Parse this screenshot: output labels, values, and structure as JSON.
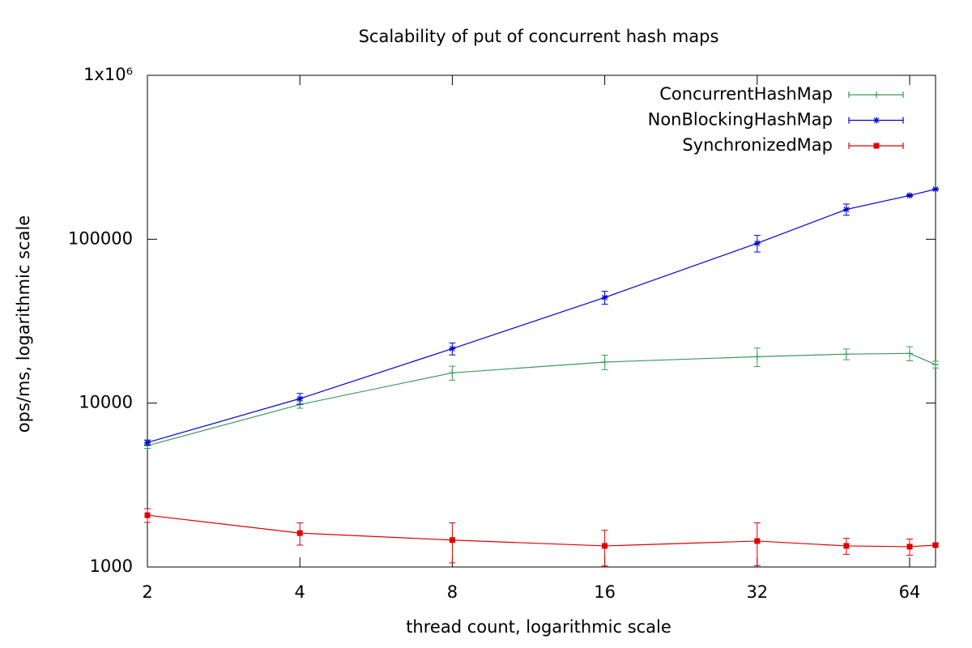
{
  "chart_data": {
    "type": "line",
    "title": "Scalability of put of concurrent hash maps",
    "x_label": "thread count, logarithmic scale",
    "y_label": "ops/ms, logarithmic scale",
    "log_x": true,
    "log_y": true,
    "grid": false,
    "legend_position": "top-right",
    "x": [
      2,
      4,
      8,
      16,
      32,
      48,
      64,
      72
    ],
    "xlim": [
      2,
      72
    ],
    "xticks": [
      2,
      4,
      8,
      16,
      32,
      64
    ],
    "ylim": [
      1000,
      1000000
    ],
    "yticks": [
      1000,
      10000,
      100000,
      {
        "value": 1000000,
        "label": "1x10⁶"
      }
    ],
    "series": [
      {
        "name": "ConcurrentHashMap",
        "color": "#3a9a5a",
        "marker": "plus",
        "values": [
          5500,
          9800,
          15300,
          17800,
          19200,
          19900,
          20100,
          17200
        ],
        "errors": [
          200,
          500,
          1500,
          1800,
          2500,
          1500,
          2000,
          800
        ]
      },
      {
        "name": "NonBlockingHashMap",
        "color": "#0000cc",
        "marker": "star",
        "values": [
          5750,
          10650,
          21500,
          44100,
          94500,
          152000,
          185000,
          202000
        ],
        "errors": [
          200,
          800,
          1800,
          4000,
          11000,
          12000,
          2000,
          1000
        ]
      },
      {
        "name": "SynchronizedMap",
        "color": "#e00000",
        "marker": "square",
        "values": [
          2070,
          1610,
          1460,
          1345,
          1440,
          1345,
          1330,
          1360
        ],
        "errors": [
          200,
          250,
          400,
          330,
          420,
          150,
          150,
          30
        ]
      }
    ]
  }
}
